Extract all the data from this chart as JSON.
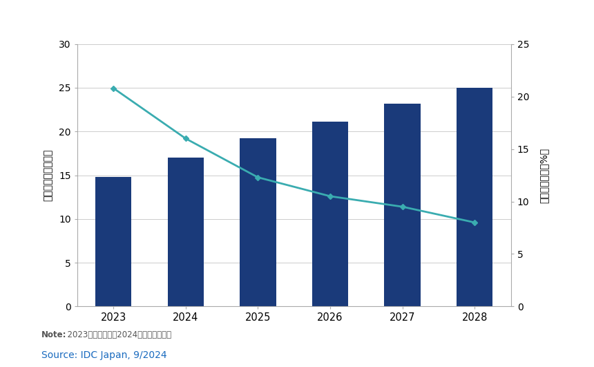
{
  "years": [
    2023,
    2024,
    2025,
    2026,
    2027,
    2028
  ],
  "bar_values": [
    14.8,
    17.0,
    19.2,
    21.1,
    23.2,
    25.0
  ],
  "line_values": [
    20.8,
    16.0,
    12.3,
    10.5,
    9.5,
    8.0
  ],
  "bar_color": "#1a3a7a",
  "line_color": "#3aacb0",
  "left_ylim": [
    0,
    30
  ],
  "right_ylim": [
    0,
    25
  ],
  "left_yticks": [
    0,
    5,
    10,
    15,
    20,
    25,
    30
  ],
  "right_yticks": [
    0,
    5,
    10,
    15,
    20,
    25
  ],
  "left_ylabel": "支出総額（十億円）",
  "right_ylabel": "前年比成長率（%）",
  "background_color": "#ffffff",
  "grid_color": "#cccccc",
  "note_label": "Note:",
  "note_content": "  2023年は実績値、2024年以降は予測値",
  "source_text": "Source: IDC Japan, 9/2024",
  "source_color": "#1a6bbf",
  "note_color": "#555555"
}
